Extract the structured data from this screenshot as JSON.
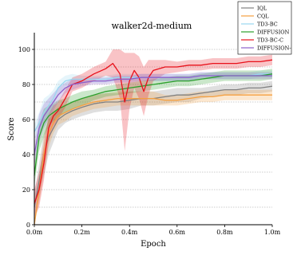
{
  "chart_data": {
    "type": "line",
    "title": "walker2d-medium",
    "xlabel": "Epoch",
    "ylabel": "Score",
    "xlim": [
      0,
      1.0
    ],
    "ylim": [
      0,
      100
    ],
    "x_ticks": [
      0,
      0.2,
      0.4,
      0.6,
      0.8,
      1.0
    ],
    "x_tick_labels": [
      "0.0m",
      "0.2m",
      "0.4m",
      "0.6m",
      "0.8m",
      "1.0m"
    ],
    "y_ticks": [
      0,
      20,
      40,
      60,
      80,
      100
    ],
    "y_tick_labels": [
      "0",
      "20",
      "40",
      "60",
      "80",
      "100"
    ],
    "grid": "horizontal-dotted",
    "legend_position": "top-right",
    "series": [
      {
        "name": "IQL",
        "color": "#808080",
        "x": [
          0.0,
          0.02,
          0.04,
          0.06,
          0.08,
          0.1,
          0.13,
          0.16,
          0.2,
          0.25,
          0.3,
          0.35,
          0.4,
          0.45,
          0.5,
          0.55,
          0.6,
          0.65,
          0.7,
          0.75,
          0.8,
          0.85,
          0.9,
          0.95,
          1.0
        ],
        "y": [
          10,
          25,
          40,
          50,
          55,
          60,
          63,
          65,
          67,
          69,
          70,
          70,
          71,
          72,
          72,
          73,
          74,
          74,
          75,
          76,
          77,
          77,
          78,
          78,
          79
        ],
        "band": [
          6,
          10,
          12,
          10,
          8,
          6,
          5,
          5,
          5,
          5,
          5,
          5,
          5,
          4,
          4,
          4,
          4,
          4,
          3,
          3,
          3,
          3,
          3,
          3,
          3
        ]
      },
      {
        "name": "CQL",
        "color": "#f5a040",
        "x": [
          0.0,
          0.02,
          0.04,
          0.06,
          0.08,
          0.1,
          0.13,
          0.16,
          0.2,
          0.25,
          0.3,
          0.35,
          0.4,
          0.45,
          0.5,
          0.55,
          0.6,
          0.65,
          0.7,
          0.75,
          0.8,
          0.85,
          0.9,
          0.95,
          1.0
        ],
        "y": [
          0,
          20,
          40,
          52,
          58,
          62,
          64,
          66,
          68,
          70,
          71,
          72,
          72,
          72,
          72,
          71,
          71,
          72,
          73,
          73,
          74,
          74,
          74,
          74,
          74
        ],
        "band": [
          0,
          8,
          10,
          8,
          6,
          5,
          5,
          4,
          4,
          4,
          4,
          4,
          4,
          4,
          4,
          3,
          3,
          3,
          3,
          3,
          3,
          3,
          3,
          3,
          3
        ]
      },
      {
        "name": "TD3-BC",
        "color": "#9ad7f0",
        "x": [
          0.0,
          0.02,
          0.04,
          0.06,
          0.08,
          0.1,
          0.13,
          0.16,
          0.2,
          0.25,
          0.3,
          0.35,
          0.4,
          0.45,
          0.5,
          0.55,
          0.6,
          0.65,
          0.7,
          0.75,
          0.8,
          0.85,
          0.9,
          0.95,
          1.0
        ],
        "y": [
          53,
          58,
          64,
          68,
          72,
          78,
          82,
          83,
          83,
          83,
          83,
          84,
          84,
          84,
          84,
          84,
          84,
          84,
          85,
          85,
          85,
          85,
          85,
          86,
          86
        ],
        "band": [
          4,
          6,
          8,
          6,
          5,
          4,
          3,
          3,
          2,
          2,
          2,
          2,
          2,
          2,
          2,
          2,
          2,
          2,
          2,
          2,
          2,
          2,
          2,
          2,
          2
        ]
      },
      {
        "name": "DIFFUSION",
        "color": "#2ca02c",
        "x": [
          0.0,
          0.02,
          0.04,
          0.06,
          0.08,
          0.1,
          0.13,
          0.16,
          0.2,
          0.25,
          0.3,
          0.35,
          0.4,
          0.45,
          0.5,
          0.55,
          0.6,
          0.65,
          0.7,
          0.75,
          0.8,
          0.85,
          0.9,
          0.95,
          1.0
        ],
        "y": [
          28,
          50,
          58,
          62,
          64,
          66,
          68,
          70,
          72,
          74,
          76,
          77,
          78,
          79,
          80,
          81,
          82,
          82,
          83,
          84,
          85,
          85,
          85,
          85,
          86
        ],
        "band": [
          6,
          8,
          8,
          6,
          5,
          5,
          4,
          4,
          4,
          3,
          3,
          3,
          3,
          3,
          3,
          3,
          3,
          3,
          3,
          3,
          3,
          3,
          3,
          3,
          3
        ]
      },
      {
        "name": "TD3-BC-C",
        "color": "#e8101a",
        "x": [
          0.0,
          0.02,
          0.04,
          0.06,
          0.08,
          0.1,
          0.13,
          0.16,
          0.2,
          0.25,
          0.3,
          0.33,
          0.36,
          0.38,
          0.4,
          0.42,
          0.44,
          0.46,
          0.48,
          0.5,
          0.55,
          0.6,
          0.65,
          0.7,
          0.75,
          0.8,
          0.85,
          0.9,
          0.95,
          1.0
        ],
        "y": [
          12,
          20,
          35,
          55,
          62,
          65,
          72,
          80,
          82,
          86,
          89,
          92,
          86,
          70,
          82,
          88,
          84,
          76,
          84,
          88,
          90,
          90,
          91,
          91,
          92,
          92,
          92,
          93,
          93,
          94
        ],
        "band": [
          8,
          10,
          10,
          8,
          6,
          5,
          5,
          4,
          4,
          4,
          4,
          8,
          14,
          28,
          16,
          10,
          12,
          14,
          10,
          6,
          4,
          3,
          3,
          3,
          3,
          3,
          3,
          3,
          3,
          3
        ]
      },
      {
        "name": "DIFFUSION-",
        "color": "#8c5fc9",
        "x": [
          0.0,
          0.02,
          0.04,
          0.06,
          0.08,
          0.1,
          0.13,
          0.16,
          0.2,
          0.25,
          0.3,
          0.35,
          0.4,
          0.45,
          0.5,
          0.55,
          0.6,
          0.65,
          0.7,
          0.75,
          0.8,
          0.85,
          0.9,
          0.95,
          1.0
        ],
        "y": [
          40,
          55,
          62,
          66,
          70,
          74,
          78,
          80,
          81,
          82,
          82,
          83,
          83,
          84,
          84,
          84,
          84,
          84,
          85,
          85,
          85,
          85,
          85,
          85,
          85
        ],
        "band": [
          6,
          8,
          7,
          6,
          5,
          4,
          3,
          3,
          2,
          2,
          2,
          2,
          2,
          2,
          2,
          2,
          2,
          2,
          2,
          2,
          2,
          2,
          2,
          2,
          2
        ]
      }
    ]
  }
}
